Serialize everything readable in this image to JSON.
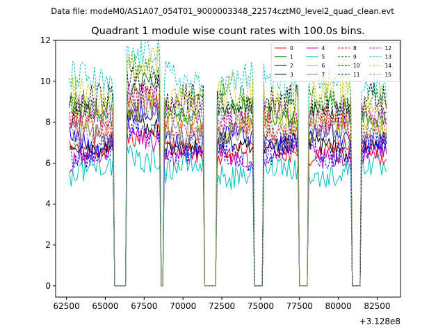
{
  "chart_data": {
    "type": "line",
    "suptitle": "Data file: modeM0/AS1A07_054T01_9000003348_22574cztM0_level2_quad_clean.evt",
    "title": "Quadrant 1 module wise count rates with 100.0s bins.",
    "xlabel": "",
    "ylabel": "",
    "x_offset_label": "+3.128e8",
    "xlim": [
      61800,
      84000
    ],
    "ylim": [
      -0.55,
      12
    ],
    "x_ticks": [
      62500,
      65000,
      67500,
      70000,
      72500,
      75000,
      77500,
      80000,
      82500
    ],
    "x_tick_labels": [
      "62500",
      "65000",
      "67500",
      "70000",
      "72500",
      "75000",
      "77500",
      "80000",
      "82500"
    ],
    "y_ticks": [
      0,
      2,
      4,
      6,
      8,
      10,
      12
    ],
    "y_tick_labels": [
      "0",
      "2",
      "4",
      "6",
      "8",
      "10",
      "12"
    ],
    "legend": {
      "placement": "top-right",
      "ncol": 4
    },
    "time_range": {
      "start": 62700,
      "end": 83100,
      "bin_seconds": 100
    },
    "segments": [
      {
        "start": 62700,
        "end": 65500,
        "level": 1.0
      },
      {
        "start": 65600,
        "end": 66300,
        "level": 0
      },
      {
        "start": 66400,
        "end": 68500,
        "level": 1.15
      },
      {
        "start": 68600,
        "end": 68700,
        "level": 0
      },
      {
        "start": 68800,
        "end": 71300,
        "level": 1.0
      },
      {
        "start": 71400,
        "end": 72100,
        "level": 0
      },
      {
        "start": 72200,
        "end": 74500,
        "level": 1.0
      },
      {
        "start": 74600,
        "end": 75100,
        "level": 0
      },
      {
        "start": 75200,
        "end": 77400,
        "level": 1.0
      },
      {
        "start": 77500,
        "end": 78000,
        "level": 0
      },
      {
        "start": 78100,
        "end": 80800,
        "level": 1.0
      },
      {
        "start": 80900,
        "end": 81400,
        "level": 0
      },
      {
        "start": 81500,
        "end": 83100,
        "level": 1.0
      }
    ],
    "series": [
      {
        "name": "0",
        "color": "#ff0000",
        "dashed": false,
        "base": 6.5
      },
      {
        "name": "1",
        "color": "#008000",
        "dashed": false,
        "base": 8.5
      },
      {
        "name": "2",
        "color": "#0000ff",
        "dashed": false,
        "base": 7.2
      },
      {
        "name": "3",
        "color": "#000000",
        "dashed": false,
        "base": 6.8
      },
      {
        "name": "4",
        "color": "#c000c0",
        "dashed": false,
        "base": 6.4
      },
      {
        "name": "5",
        "color": "#00bfbf",
        "dashed": false,
        "base": 5.6
      },
      {
        "name": "6",
        "color": "#bfbf00",
        "dashed": false,
        "base": 7.9
      },
      {
        "name": "7",
        "color": "#808080",
        "dashed": false,
        "base": 7.4
      },
      {
        "name": "8",
        "color": "#ff0000",
        "dashed": true,
        "base": 7.8
      },
      {
        "name": "9",
        "color": "#008000",
        "dashed": true,
        "base": 9.0
      },
      {
        "name": "10",
        "color": "#0000ff",
        "dashed": true,
        "base": 6.6
      },
      {
        "name": "11",
        "color": "#000000",
        "dashed": true,
        "base": 8.9
      },
      {
        "name": "12",
        "color": "#c000c0",
        "dashed": true,
        "base": 8.3
      },
      {
        "name": "13",
        "color": "#00bfbf",
        "dashed": true,
        "base": 9.9
      },
      {
        "name": "14",
        "color": "#bfbf00",
        "dashed": true,
        "base": 9.3
      },
      {
        "name": "15",
        "color": "#808080",
        "dashed": true,
        "base": 7.6
      }
    ]
  }
}
